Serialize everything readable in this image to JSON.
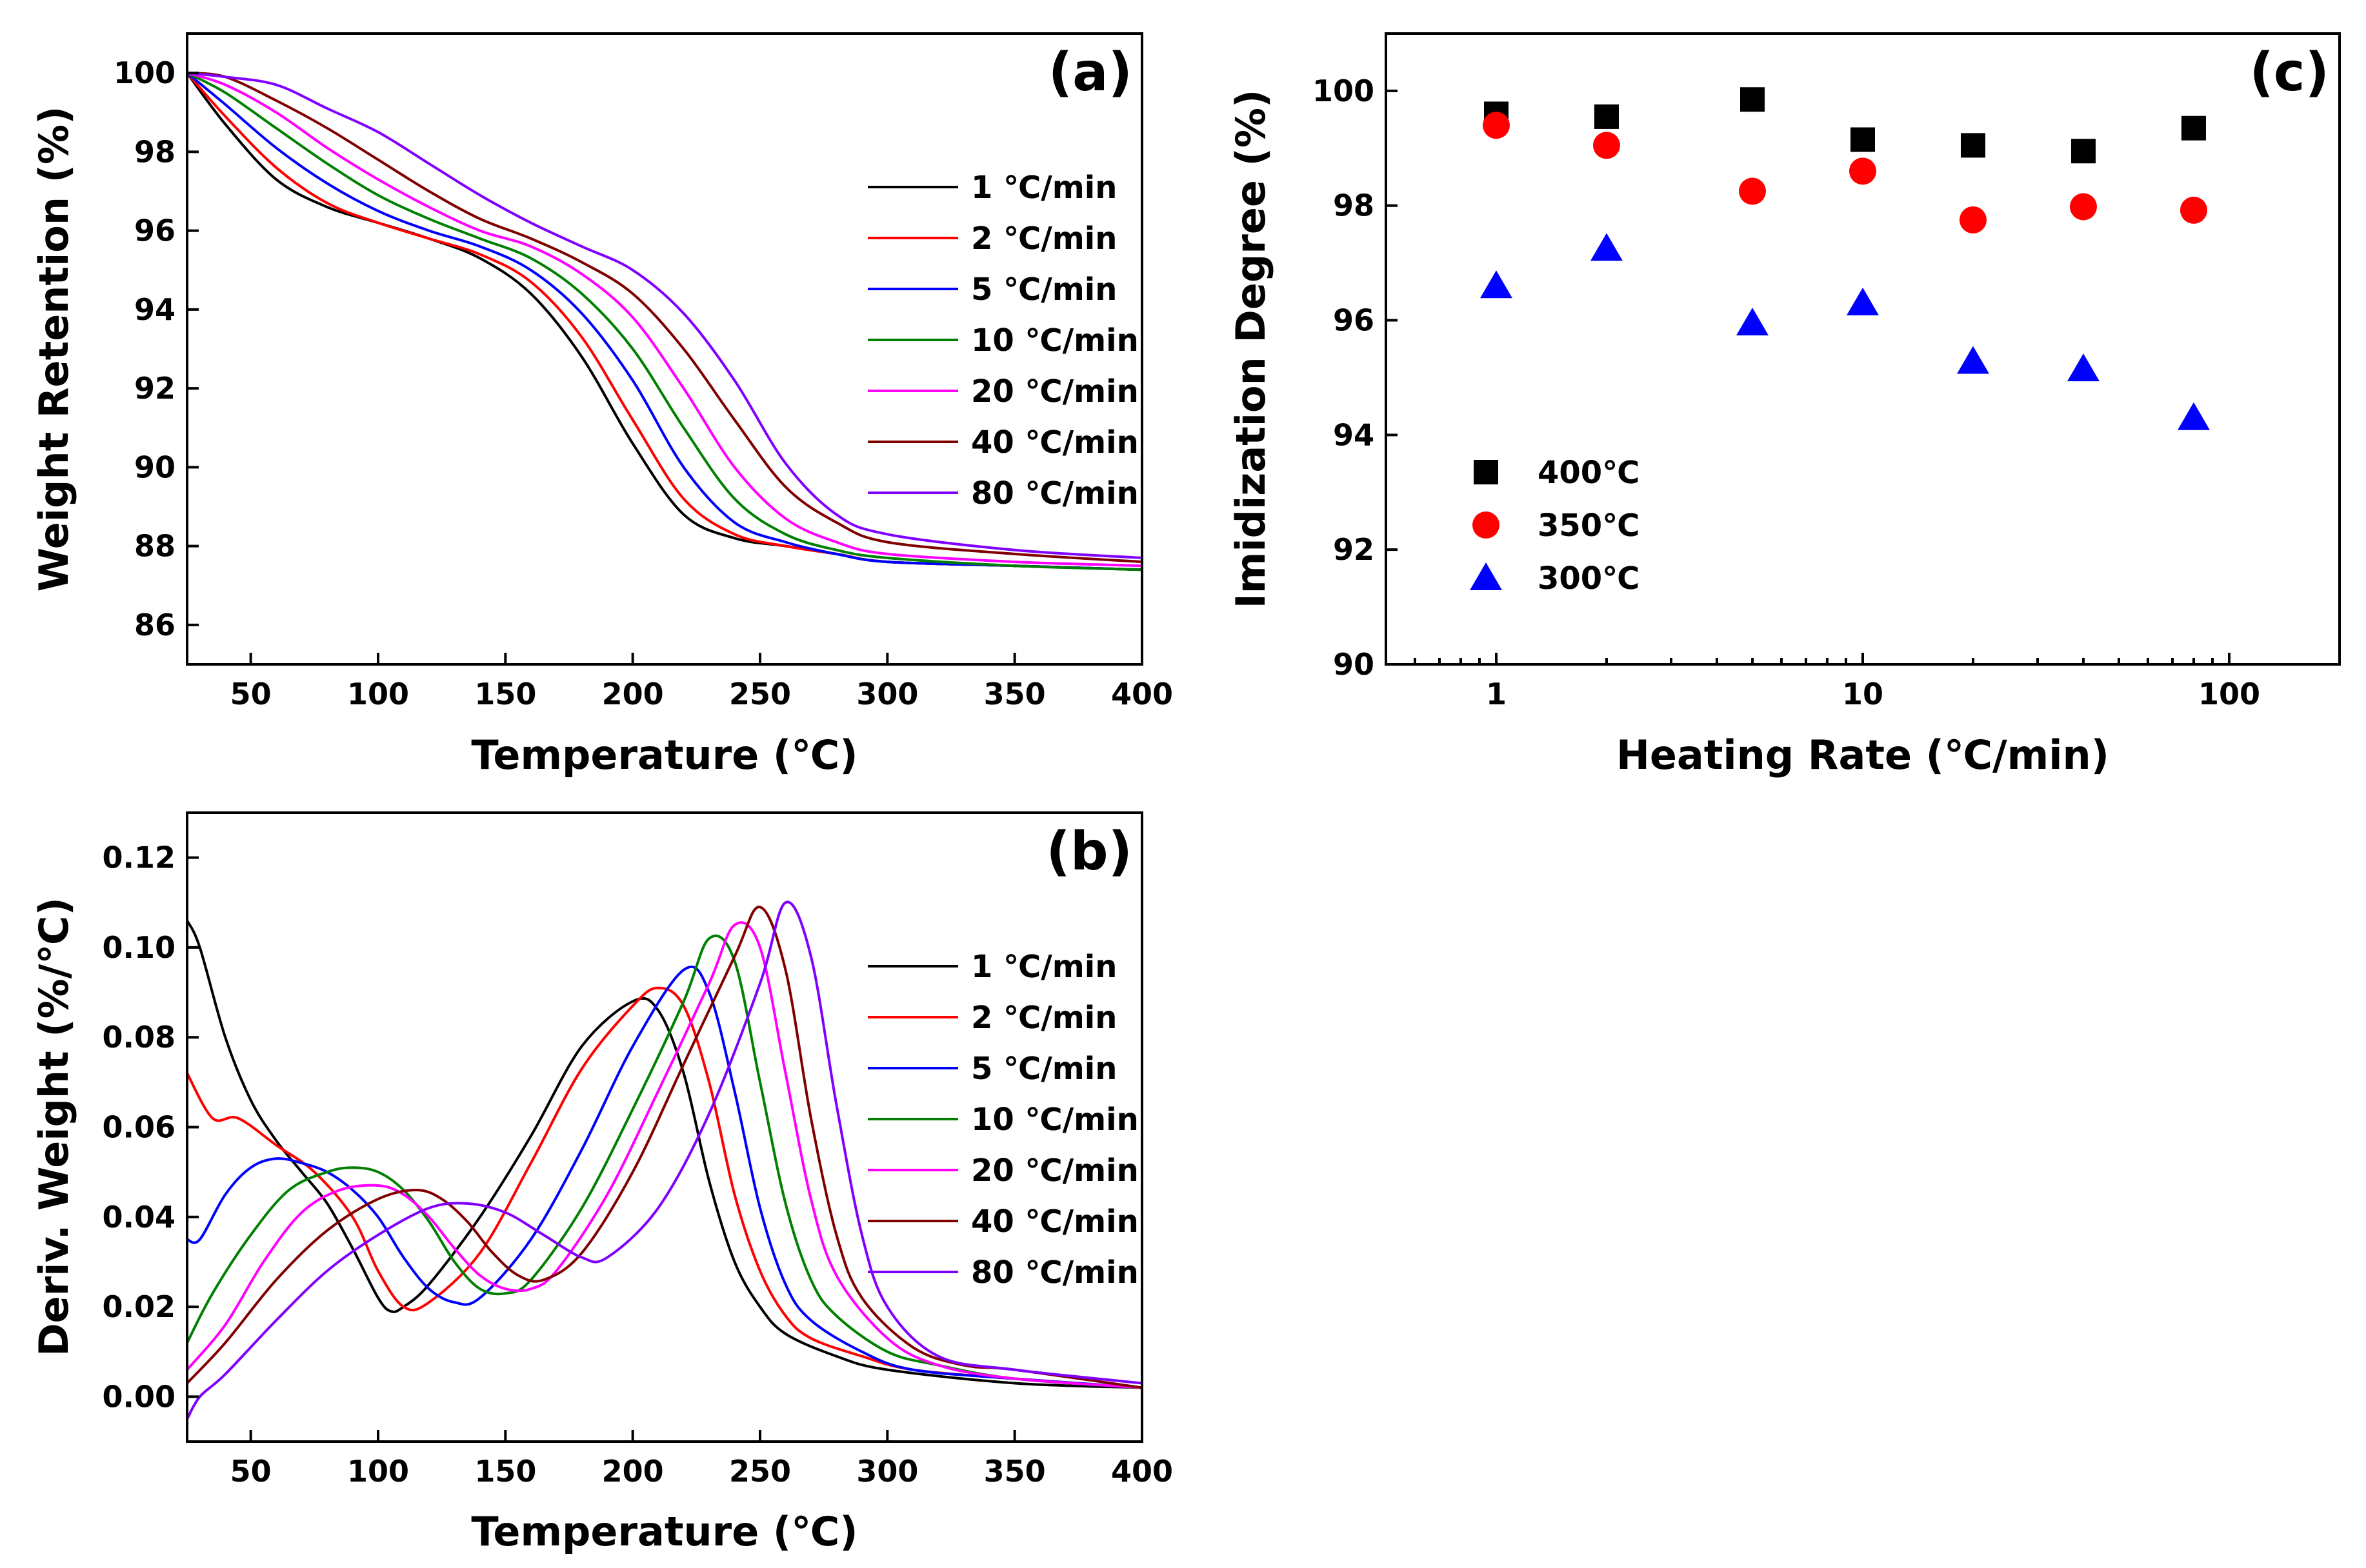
{
  "chart_data": [
    {
      "panel": "(a)",
      "type": "line",
      "title": "",
      "xlabel": "Temperature (℃)",
      "ylabel": "Weight Retention (%)",
      "xlim": [
        25,
        400
      ],
      "ylim": [
        85,
        101
      ],
      "xticks": [
        50,
        100,
        150,
        200,
        250,
        300,
        350,
        400
      ],
      "yticks": [
        86,
        88,
        90,
        92,
        94,
        96,
        98,
        100
      ],
      "legend_position": "right",
      "series": [
        {
          "name": "1 ℃/min",
          "color": "#000000",
          "x": [
            25,
            40,
            60,
            80,
            100,
            120,
            140,
            160,
            180,
            200,
            220,
            240,
            260,
            280,
            300,
            350,
            400
          ],
          "y": [
            100,
            98.7,
            97.3,
            96.6,
            96.2,
            95.8,
            95.3,
            94.4,
            92.8,
            90.6,
            88.8,
            88.2,
            88.0,
            87.8,
            87.6,
            87.5,
            87.4
          ]
        },
        {
          "name": "2 ℃/min",
          "color": "#ff0000",
          "x": [
            25,
            40,
            60,
            80,
            100,
            120,
            140,
            160,
            180,
            200,
            220,
            240,
            260,
            280,
            300,
            350,
            400
          ],
          "y": [
            100,
            98.9,
            97.6,
            96.7,
            96.2,
            95.8,
            95.4,
            94.7,
            93.3,
            91.2,
            89.2,
            88.3,
            88.0,
            87.8,
            87.6,
            87.5,
            87.4
          ]
        },
        {
          "name": "5 ℃/min",
          "color": "#0000ff",
          "x": [
            25,
            40,
            60,
            80,
            100,
            120,
            140,
            160,
            180,
            200,
            220,
            240,
            260,
            280,
            300,
            350,
            400
          ],
          "y": [
            100,
            99.2,
            98.1,
            97.2,
            96.5,
            96.0,
            95.6,
            95.0,
            93.9,
            92.2,
            90.0,
            88.6,
            88.1,
            87.8,
            87.6,
            87.5,
            87.4
          ]
        },
        {
          "name": "10 ℃/min",
          "color": "#008000",
          "x": [
            25,
            40,
            60,
            80,
            100,
            120,
            140,
            160,
            180,
            200,
            220,
            240,
            260,
            280,
            300,
            350,
            400
          ],
          "y": [
            100,
            99.5,
            98.6,
            97.7,
            96.9,
            96.3,
            95.8,
            95.3,
            94.4,
            93.0,
            91.0,
            89.2,
            88.3,
            87.9,
            87.7,
            87.5,
            87.4
          ]
        },
        {
          "name": "20 ℃/min",
          "color": "#ff00ff",
          "x": [
            25,
            40,
            60,
            80,
            100,
            120,
            140,
            160,
            180,
            200,
            220,
            240,
            260,
            280,
            300,
            350,
            400
          ],
          "y": [
            100,
            99.7,
            99.0,
            98.1,
            97.3,
            96.6,
            96.0,
            95.6,
            94.9,
            93.8,
            92.0,
            90.0,
            88.7,
            88.1,
            87.8,
            87.6,
            87.5
          ]
        },
        {
          "name": "40 ℃/min",
          "color": "#800000",
          "x": [
            25,
            40,
            60,
            80,
            100,
            120,
            140,
            160,
            180,
            200,
            220,
            240,
            260,
            280,
            300,
            350,
            400
          ],
          "y": [
            100,
            99.9,
            99.3,
            98.6,
            97.8,
            97.0,
            96.3,
            95.8,
            95.2,
            94.4,
            93.0,
            91.2,
            89.5,
            88.6,
            88.1,
            87.8,
            87.6
          ]
        },
        {
          "name": "80 ℃/min",
          "color": "#8000ff",
          "x": [
            25,
            40,
            60,
            80,
            100,
            120,
            140,
            160,
            180,
            200,
            220,
            240,
            260,
            280,
            300,
            350,
            400
          ],
          "y": [
            100,
            99.9,
            99.7,
            99.1,
            98.5,
            97.7,
            96.9,
            96.2,
            95.6,
            95.0,
            93.9,
            92.2,
            90.1,
            88.8,
            88.3,
            87.9,
            87.7
          ]
        }
      ]
    },
    {
      "panel": "(b)",
      "type": "line",
      "title": "",
      "xlabel": "Temperature (℃)",
      "ylabel": "Deriv. Weight (%/℃)",
      "xlim": [
        25,
        400
      ],
      "ylim": [
        -0.01,
        0.13
      ],
      "xticks": [
        50,
        100,
        150,
        200,
        250,
        300,
        350,
        400
      ],
      "yticks": [
        "0.00",
        "0.02",
        "0.04",
        "0.06",
        "0.08",
        "0.10",
        "0.12"
      ],
      "legend_position": "right",
      "series": [
        {
          "name": "1 ℃/min",
          "color": "#000000",
          "x": [
            25,
            30,
            40,
            50,
            60,
            70,
            80,
            90,
            100,
            105,
            110,
            120,
            140,
            160,
            180,
            200,
            210,
            220,
            230,
            240,
            250,
            260,
            280,
            300,
            350,
            400
          ],
          "y": [
            0.106,
            0.1,
            0.08,
            0.066,
            0.057,
            0.05,
            0.043,
            0.033,
            0.022,
            0.019,
            0.02,
            0.025,
            0.04,
            0.058,
            0.078,
            0.088,
            0.086,
            0.072,
            0.048,
            0.03,
            0.02,
            0.014,
            0.009,
            0.006,
            0.003,
            0.002
          ]
        },
        {
          "name": "2 ℃/min",
          "color": "#ff0000",
          "x": [
            25,
            35,
            45,
            60,
            75,
            90,
            100,
            110,
            120,
            140,
            160,
            180,
            200,
            210,
            220,
            230,
            240,
            250,
            260,
            270,
            290,
            310,
            350,
            400
          ],
          "y": [
            0.072,
            0.062,
            0.062,
            0.056,
            0.05,
            0.04,
            0.028,
            0.02,
            0.021,
            0.032,
            0.052,
            0.073,
            0.087,
            0.091,
            0.087,
            0.07,
            0.045,
            0.028,
            0.018,
            0.013,
            0.009,
            0.006,
            0.004,
            0.002
          ]
        },
        {
          "name": "5 ℃/min",
          "color": "#0000ff",
          "x": [
            25,
            30,
            40,
            50,
            60,
            70,
            80,
            90,
            100,
            110,
            120,
            130,
            140,
            160,
            180,
            200,
            220,
            230,
            240,
            250,
            260,
            270,
            290,
            310,
            350,
            400
          ],
          "y": [
            0.035,
            0.035,
            0.045,
            0.051,
            0.053,
            0.052,
            0.05,
            0.046,
            0.04,
            0.031,
            0.024,
            0.021,
            0.022,
            0.035,
            0.055,
            0.078,
            0.095,
            0.09,
            0.068,
            0.042,
            0.025,
            0.017,
            0.01,
            0.006,
            0.004,
            0.002
          ]
        },
        {
          "name": "10 ℃/min",
          "color": "#008000",
          "x": [
            25,
            35,
            50,
            65,
            80,
            90,
            100,
            110,
            120,
            130,
            140,
            150,
            160,
            180,
            200,
            220,
            230,
            240,
            250,
            260,
            270,
            280,
            300,
            320,
            350,
            400
          ],
          "y": [
            0.012,
            0.023,
            0.036,
            0.046,
            0.05,
            0.051,
            0.05,
            0.046,
            0.039,
            0.03,
            0.024,
            0.023,
            0.026,
            0.042,
            0.064,
            0.088,
            0.102,
            0.097,
            0.07,
            0.043,
            0.026,
            0.018,
            0.01,
            0.007,
            0.004,
            0.002
          ]
        },
        {
          "name": "20 ℃/min",
          "color": "#ff00ff",
          "x": [
            25,
            40,
            55,
            70,
            85,
            100,
            110,
            120,
            130,
            140,
            150,
            160,
            170,
            190,
            210,
            230,
            240,
            250,
            260,
            270,
            280,
            300,
            320,
            350,
            400
          ],
          "y": [
            0.006,
            0.016,
            0.03,
            0.041,
            0.046,
            0.047,
            0.045,
            0.04,
            0.033,
            0.027,
            0.024,
            0.024,
            0.028,
            0.045,
            0.068,
            0.092,
            0.105,
            0.1,
            0.072,
            0.044,
            0.027,
            0.013,
            0.007,
            0.004,
            0.002
          ]
        },
        {
          "name": "40 ℃/min",
          "color": "#800000",
          "x": [
            25,
            40,
            60,
            80,
            100,
            115,
            125,
            135,
            145,
            155,
            165,
            180,
            200,
            220,
            240,
            250,
            260,
            270,
            280,
            290,
            310,
            330,
            350,
            400
          ],
          "y": [
            0.003,
            0.012,
            0.026,
            0.037,
            0.044,
            0.046,
            0.044,
            0.039,
            0.032,
            0.027,
            0.026,
            0.032,
            0.05,
            0.074,
            0.098,
            0.109,
            0.095,
            0.062,
            0.036,
            0.022,
            0.011,
            0.007,
            0.006,
            0.002
          ]
        },
        {
          "name": "80 ℃/min",
          "color": "#8000ff",
          "x": [
            25,
            30,
            40,
            60,
            80,
            100,
            120,
            135,
            150,
            165,
            180,
            190,
            210,
            230,
            250,
            260,
            270,
            280,
            290,
            300,
            320,
            350,
            400
          ],
          "y": [
            -0.005,
            0.0,
            0.005,
            0.017,
            0.028,
            0.036,
            0.042,
            0.043,
            0.041,
            0.036,
            0.031,
            0.031,
            0.042,
            0.063,
            0.092,
            0.11,
            0.098,
            0.065,
            0.036,
            0.02,
            0.009,
            0.006,
            0.003
          ]
        }
      ]
    },
    {
      "panel": "(c)",
      "type": "scatter",
      "title": "",
      "xlabel": "Heating Rate (℃/min)",
      "ylabel": "Imidization Degree (%)",
      "xscale": "log",
      "xlim": [
        0.5,
        200
      ],
      "ylim": [
        90,
        101
      ],
      "xticks": [
        "1",
        "10",
        "100"
      ],
      "yticks": [
        90,
        92,
        94,
        96,
        98,
        100
      ],
      "legend_position": "bottom-left",
      "series": [
        {
          "name": "400℃",
          "marker": "square",
          "color": "#000000",
          "x": [
            1,
            2,
            5,
            10,
            20,
            40,
            80
          ],
          "y": [
            99.6,
            99.55,
            99.85,
            99.15,
            99.05,
            98.95,
            99.35
          ]
        },
        {
          "name": "350℃",
          "marker": "circle",
          "color": "#ff0000",
          "x": [
            1,
            2,
            5,
            10,
            20,
            40,
            80
          ],
          "y": [
            99.4,
            99.05,
            98.25,
            98.6,
            97.75,
            97.98,
            97.92
          ]
        },
        {
          "name": "300℃",
          "marker": "triangle",
          "color": "#0000ff",
          "x": [
            1,
            2,
            5,
            10,
            20,
            40,
            80
          ],
          "y": [
            96.6,
            97.25,
            95.95,
            96.3,
            95.28,
            95.15,
            94.3
          ]
        }
      ]
    }
  ]
}
